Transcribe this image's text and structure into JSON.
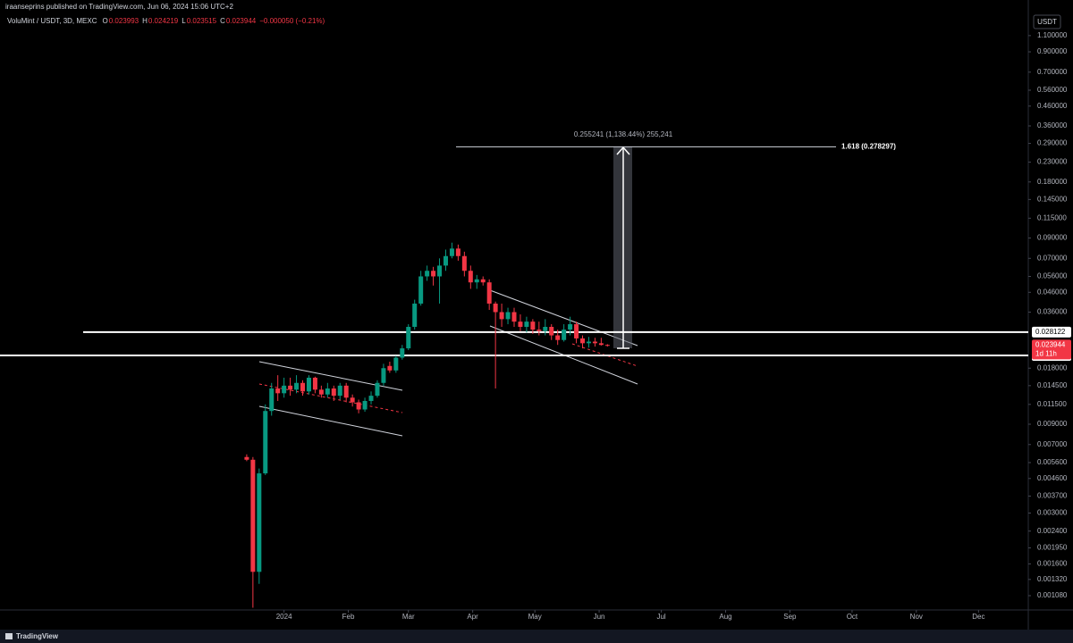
{
  "header": {
    "publisher": "iraanseprins published on TradingView.com, Jun 06, 2024 15:06 UTC+2",
    "brand": "TradingView"
  },
  "chart_data": {
    "type": "candlestick",
    "symbol": "VoluMint / USDT, 3D, MEXC",
    "ohlc_labels": [
      "O",
      "H",
      "L",
      "C"
    ],
    "change": "−0.000050 (−0.21%)",
    "currency": "USDT",
    "countdown": "1d 11h",
    "log_scale": true,
    "grid": false,
    "up_color": "#089981",
    "down_color": "#f23645",
    "x": [
      -18,
      -15,
      -12,
      -9,
      -6,
      -3,
      0,
      3,
      6,
      9,
      12,
      15,
      18,
      21,
      24,
      27,
      30,
      33,
      36,
      39,
      42,
      45,
      48,
      51,
      54,
      57,
      60,
      63,
      66,
      69,
      72,
      75,
      78,
      81,
      84,
      87,
      90,
      93,
      96,
      99,
      102,
      105,
      108,
      111,
      114,
      117,
      120,
      123,
      126,
      129,
      132,
      135,
      138,
      141,
      144,
      147,
      150,
      153,
      156
    ],
    "open": [
      0.006,
      0.0058,
      0.00145,
      0.0049,
      0.0106,
      0.014,
      0.0132,
      0.0145,
      0.0138,
      0.015,
      0.0135,
      0.016,
      0.0138,
      0.013,
      0.014,
      0.0128,
      0.0145,
      0.0125,
      0.0118,
      0.0108,
      0.012,
      0.0128,
      0.015,
      0.0185,
      0.0175,
      0.0205,
      0.023,
      0.03,
      0.04,
      0.056,
      0.06,
      0.056,
      0.064,
      0.072,
      0.079,
      0.072,
      0.06,
      0.052,
      0.054,
      0.052,
      0.04,
      0.036,
      0.033,
      0.036,
      0.032,
      0.03,
      0.032,
      0.029,
      0.0285,
      0.03,
      0.027,
      0.0255,
      0.029,
      0.031,
      0.026,
      0.0245,
      0.025,
      0.0245,
      0.023993
    ],
    "high": [
      0.0062,
      0.006,
      0.0052,
      0.0115,
      0.015,
      0.0165,
      0.016,
      0.016,
      0.0165,
      0.0155,
      0.0165,
      0.0162,
      0.0145,
      0.015,
      0.0145,
      0.015,
      0.015,
      0.013,
      0.0122,
      0.0125,
      0.0135,
      0.0155,
      0.019,
      0.0195,
      0.021,
      0.024,
      0.031,
      0.042,
      0.06,
      0.064,
      0.063,
      0.07,
      0.078,
      0.085,
      0.083,
      0.076,
      0.064,
      0.057,
      0.056,
      0.054,
      0.041,
      0.04,
      0.038,
      0.038,
      0.035,
      0.034,
      0.033,
      0.032,
      0.033,
      0.031,
      0.029,
      0.031,
      0.034,
      0.032,
      0.027,
      0.0265,
      0.0262,
      0.0262,
      0.024219
    ],
    "low": [
      0.0057,
      0.00093,
      0.00125,
      0.0048,
      0.01,
      0.012,
      0.0125,
      0.0128,
      0.0132,
      0.0128,
      0.013,
      0.0132,
      0.0125,
      0.0125,
      0.012,
      0.0122,
      0.0118,
      0.0112,
      0.0103,
      0.0105,
      0.0115,
      0.0125,
      0.0145,
      0.017,
      0.017,
      0.02,
      0.0225,
      0.029,
      0.039,
      0.053,
      0.05,
      0.04,
      0.06,
      0.07,
      0.068,
      0.056,
      0.048,
      0.048,
      0.05,
      0.037,
      0.014,
      0.03,
      0.031,
      0.03,
      0.0285,
      0.028,
      0.0275,
      0.027,
      0.027,
      0.0255,
      0.024,
      0.025,
      0.027,
      0.0245,
      0.023,
      0.0232,
      0.0235,
      0.0238,
      0.023515
    ],
    "close": [
      0.0058,
      0.00145,
      0.0049,
      0.0106,
      0.014,
      0.0132,
      0.0145,
      0.0138,
      0.015,
      0.0135,
      0.016,
      0.0138,
      0.013,
      0.014,
      0.0128,
      0.0145,
      0.0125,
      0.0118,
      0.0108,
      0.012,
      0.0128,
      0.015,
      0.018,
      0.0175,
      0.0205,
      0.023,
      0.03,
      0.04,
      0.056,
      0.06,
      0.056,
      0.064,
      0.072,
      0.079,
      0.072,
      0.06,
      0.052,
      0.054,
      0.052,
      0.04,
      0.036,
      0.033,
      0.036,
      0.032,
      0.03,
      0.032,
      0.029,
      0.0285,
      0.03,
      0.027,
      0.0255,
      0.029,
      0.031,
      0.026,
      0.0245,
      0.025,
      0.0245,
      0.023993,
      0.023944
    ],
    "xlim": [
      -137,
      359
    ],
    "xticks": [
      {
        "value": 0,
        "label": "2024"
      },
      {
        "value": 31,
        "label": "Feb"
      },
      {
        "value": 60,
        "label": "Mar"
      },
      {
        "value": 91,
        "label": "Apr"
      },
      {
        "value": 121,
        "label": "May"
      },
      {
        "value": 152,
        "label": "Jun"
      },
      {
        "value": 182,
        "label": "Jul"
      },
      {
        "value": 213,
        "label": "Aug"
      },
      {
        "value": 244,
        "label": "Sep"
      },
      {
        "value": 274,
        "label": "Oct"
      },
      {
        "value": 305,
        "label": "Nov"
      },
      {
        "value": 335,
        "label": "Dec"
      }
    ],
    "ylim": [
      0.000905,
      1.34
    ],
    "yticks": [
      {
        "value": 1.1,
        "label": "1.100000"
      },
      {
        "value": 0.9,
        "label": "0.900000"
      },
      {
        "value": 0.7,
        "label": "0.700000"
      },
      {
        "value": 0.56,
        "label": "0.560000"
      },
      {
        "value": 0.46,
        "label": "0.460000"
      },
      {
        "value": 0.36,
        "label": "0.360000"
      },
      {
        "value": 0.29,
        "label": "0.290000"
      },
      {
        "value": 0.23,
        "label": "0.230000"
      },
      {
        "value": 0.18,
        "label": "0.180000"
      },
      {
        "value": 0.145,
        "label": "0.145000"
      },
      {
        "value": 0.115,
        "label": "0.115000"
      },
      {
        "value": 0.09,
        "label": "0.090000"
      },
      {
        "value": 0.07,
        "label": "0.070000"
      },
      {
        "value": 0.056,
        "label": "0.056000"
      },
      {
        "value": 0.046,
        "label": "0.046000"
      },
      {
        "value": 0.036,
        "label": "0.036000"
      },
      {
        "value": 0.018,
        "label": "0.018000"
      },
      {
        "value": 0.0145,
        "label": "0.014500"
      },
      {
        "value": 0.0115,
        "label": "0.011500"
      },
      {
        "value": 0.009,
        "label": "0.009000"
      },
      {
        "value": 0.007,
        "label": "0.007000"
      },
      {
        "value": 0.0056,
        "label": "0.005600"
      },
      {
        "value": 0.0046,
        "label": "0.004600"
      },
      {
        "value": 0.0037,
        "label": "0.003700"
      },
      {
        "value": 0.003,
        "label": "0.003000"
      },
      {
        "value": 0.0024,
        "label": "0.002400"
      },
      {
        "value": 0.00195,
        "label": "0.001950"
      },
      {
        "value": 0.0016,
        "label": "0.001600"
      },
      {
        "value": 0.00132,
        "label": "0.001320"
      },
      {
        "value": 0.00108,
        "label": "0.001080"
      }
    ],
    "levels": [
      0.028122,
      0.021063
    ],
    "fib": {
      "value": 0.278297,
      "label": "1.618 (0.278297)"
    },
    "measure_label": "0.255241 (1,138.44%) 255,241"
  }
}
